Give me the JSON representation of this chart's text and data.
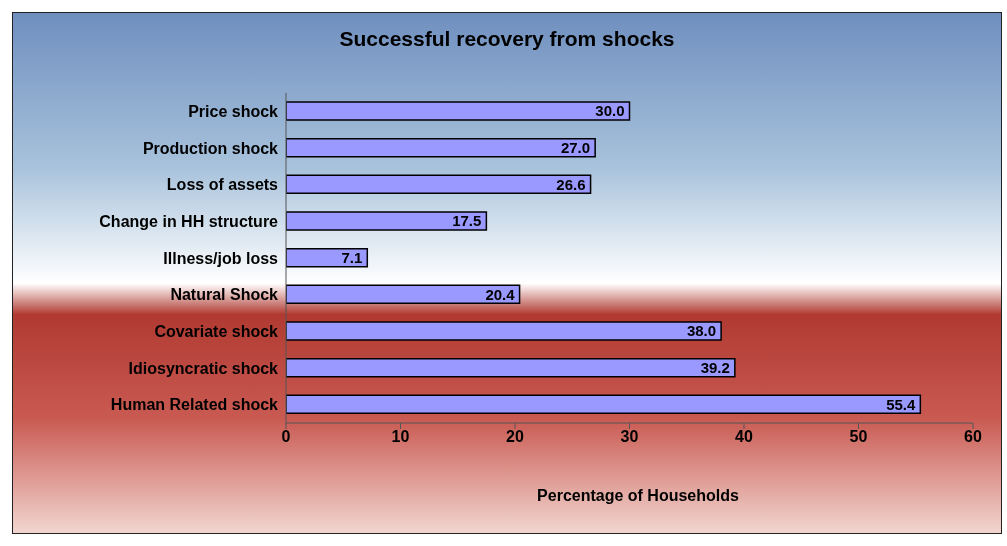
{
  "chart_data": {
    "type": "bar",
    "orientation": "horizontal",
    "title": "Successful recovery from shocks",
    "xlabel": "Percentage of Households",
    "categories": [
      "Price shock",
      "Production shock",
      "Loss of assets",
      "Change in HH structure",
      "Illness/job loss",
      "Natural Shock",
      "Covariate shock",
      "Idiosyncratic shock",
      "Human Related shock"
    ],
    "values": [
      30.0,
      27.0,
      26.6,
      17.5,
      7.1,
      20.4,
      38.0,
      39.2,
      55.4
    ],
    "value_labels": [
      "30.0",
      "27.0",
      "26.6",
      "17.5",
      "7.1",
      "20.4",
      "38.0",
      "39.2",
      "55.4"
    ],
    "color": "#9999ff",
    "xlim": [
      0,
      60
    ],
    "xticks": [
      0,
      10,
      20,
      30,
      40,
      50,
      60
    ],
    "grid": false,
    "legend": false
  }
}
